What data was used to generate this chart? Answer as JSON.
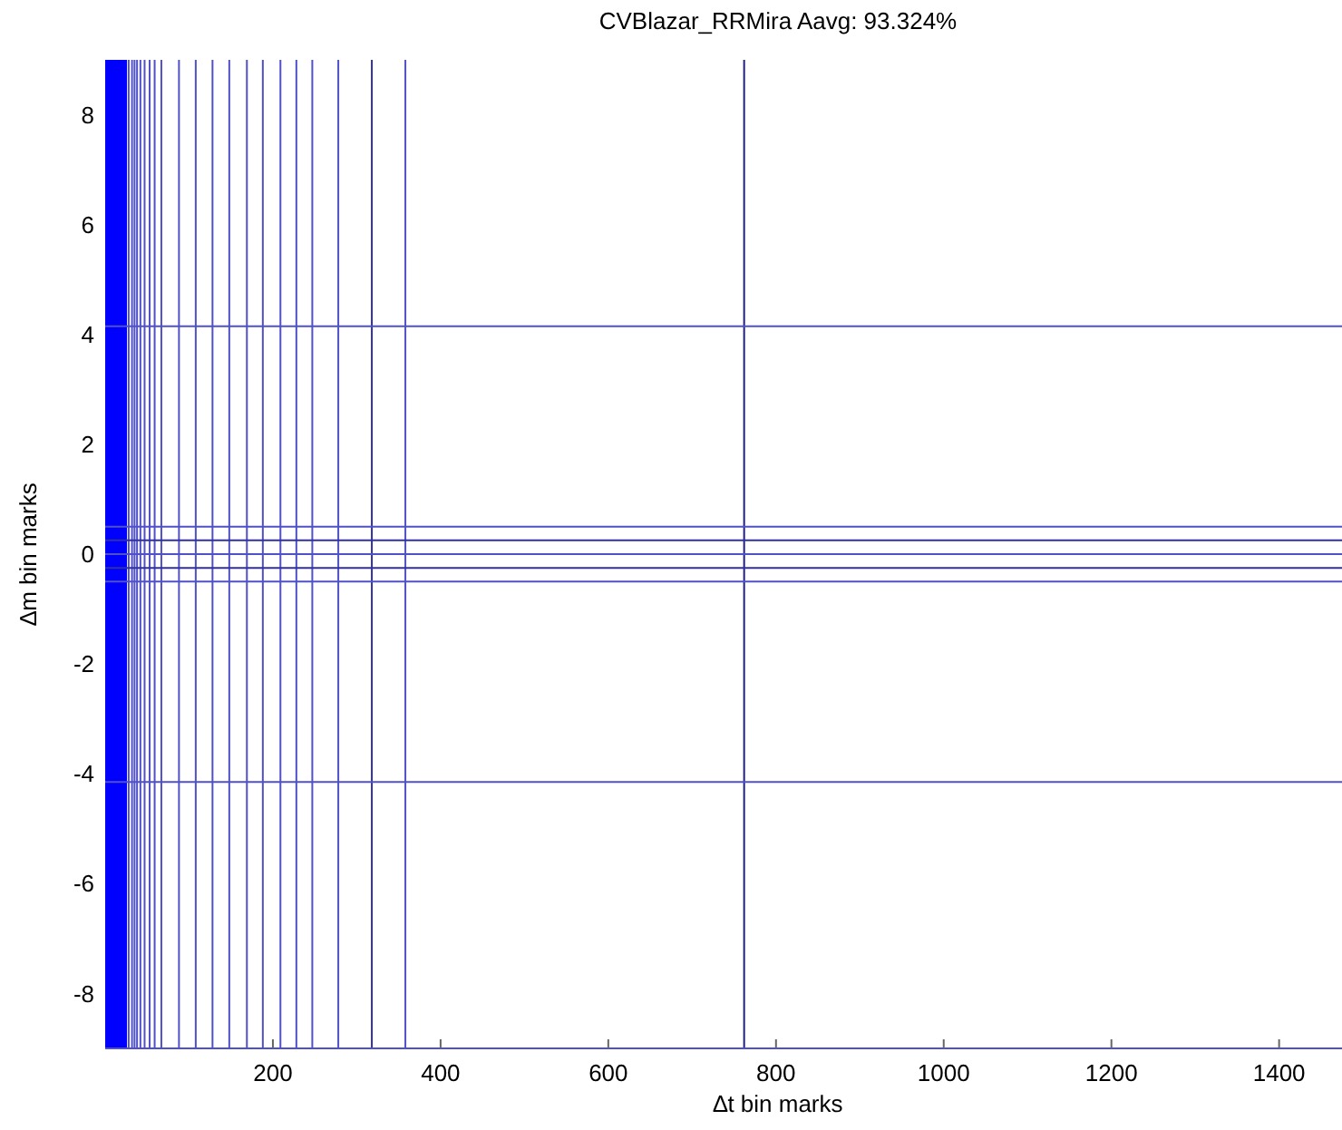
{
  "chart_data": {
    "type": "line",
    "title": "CVBlazar_RRMira Aavg: 93.324%",
    "xlabel": "∆t bin marks",
    "ylabel": "∆m bin marks",
    "xlim": [
      0,
      1475
    ],
    "ylim": [
      -9,
      9
    ],
    "xticks": [
      200,
      400,
      600,
      800,
      1000,
      1200,
      1400
    ],
    "yticks": [
      -8,
      -6,
      -4,
      -2,
      0,
      2,
      4,
      6,
      8
    ],
    "bands": [
      {
        "axis": "x",
        "from": 0,
        "to": 26,
        "color": "#0000ff"
      }
    ],
    "ref_lines": [
      {
        "axis": "x",
        "value": 28,
        "color": "#5050c8"
      },
      {
        "axis": "x",
        "value": 32,
        "color": "#5050c8"
      },
      {
        "axis": "x",
        "value": 35,
        "color": "#5050c8"
      },
      {
        "axis": "x",
        "value": 38,
        "color": "#5050c8"
      },
      {
        "axis": "x",
        "value": 42,
        "color": "#5050c8"
      },
      {
        "axis": "x",
        "value": 47,
        "color": "#5050c8"
      },
      {
        "axis": "x",
        "value": 53,
        "color": "#5050c8"
      },
      {
        "axis": "x",
        "value": 59,
        "color": "#5050c8"
      },
      {
        "axis": "x",
        "value": 67,
        "color": "#5050c8"
      },
      {
        "axis": "x",
        "value": 88,
        "color": "#5050c8"
      },
      {
        "axis": "x",
        "value": 108,
        "color": "#5050c8"
      },
      {
        "axis": "x",
        "value": 128,
        "color": "#5050c8"
      },
      {
        "axis": "x",
        "value": 148,
        "color": "#5050c8"
      },
      {
        "axis": "x",
        "value": 169,
        "color": "#5050c8"
      },
      {
        "axis": "x",
        "value": 188,
        "color": "#5050c8"
      },
      {
        "axis": "x",
        "value": 209,
        "color": "#5050c8"
      },
      {
        "axis": "x",
        "value": 228,
        "color": "#5050c8"
      },
      {
        "axis": "x",
        "value": 247,
        "color": "#5050c8"
      },
      {
        "axis": "x",
        "value": 278,
        "color": "#5050c8"
      },
      {
        "axis": "x",
        "value": 318,
        "color": "#3030a0"
      },
      {
        "axis": "x",
        "value": 358,
        "color": "#5050c8"
      },
      {
        "axis": "x",
        "value": 762,
        "color": "#202080"
      },
      {
        "axis": "y",
        "value": 4.15,
        "color": "#5050c8"
      },
      {
        "axis": "y",
        "value": 0.5,
        "color": "#5050c8"
      },
      {
        "axis": "y",
        "value": 0.25,
        "color": "#3030a0"
      },
      {
        "axis": "y",
        "value": 0,
        "color": "#5050c8"
      },
      {
        "axis": "y",
        "value": -0.25,
        "color": "#3030a0"
      },
      {
        "axis": "y",
        "value": -0.5,
        "color": "#5050c8"
      },
      {
        "axis": "y",
        "value": -4.15,
        "color": "#5050c8"
      },
      {
        "axis": "y",
        "value": -9,
        "color": "#5050c8"
      }
    ]
  }
}
